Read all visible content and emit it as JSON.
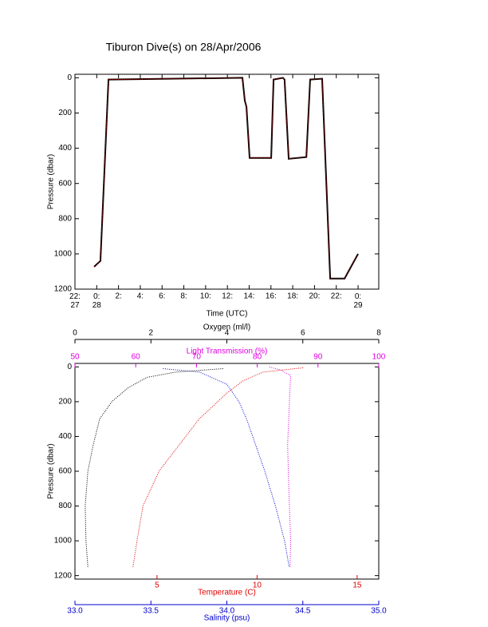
{
  "chart_data": [
    {
      "type": "line",
      "title": "Tiburon Dive(s) on 28/Apr/2006",
      "xlabel": "Time (UTC)",
      "ylabel": "Pressure (dbar)",
      "x": [
        -0.24,
        -0.02,
        0.34,
        1.08,
        13.38,
        13.6,
        13.75,
        14.04,
        16.02,
        16.24,
        17.1,
        17.25,
        17.63,
        19.25,
        19.6,
        20.7,
        21.44,
        22.76,
        24.0
      ],
      "values": [
        1073,
        1060,
        1040,
        10,
        0,
        130,
        165,
        455,
        455,
        10,
        0,
        10,
        460,
        450,
        10,
        5,
        1140,
        1140,
        1000
      ],
      "color": "#000000",
      "line_color": "#e00000",
      "xlim": [
        -2,
        25.9
      ],
      "xticks": [
        {
          "value": -2,
          "label": "22:\n27"
        },
        {
          "value": 0,
          "label": "0:\n28"
        },
        {
          "value": 2,
          "label": "2:"
        },
        {
          "value": 4,
          "label": "4:"
        },
        {
          "value": 6,
          "label": "6:"
        },
        {
          "value": 8,
          "label": "8:"
        },
        {
          "value": 10,
          "label": "10:"
        },
        {
          "value": 12,
          "label": "12:"
        },
        {
          "value": 14,
          "label": "14:"
        },
        {
          "value": 16,
          "label": "16:"
        },
        {
          "value": 18,
          "label": "18:"
        },
        {
          "value": 20,
          "label": "20:"
        },
        {
          "value": 22,
          "label": "22:"
        },
        {
          "value": 24,
          "label": "0:\n29"
        }
      ],
      "ylim": [
        1200,
        -20
      ],
      "yticks": [
        0,
        200,
        400,
        600,
        800,
        1000,
        1200
      ]
    },
    {
      "type": "profile",
      "ylabel": "Pressure (dbar)",
      "ylim": [
        1220,
        -20
      ],
      "yticks": [
        0,
        200,
        400,
        600,
        800,
        1000,
        1200
      ],
      "axes": [
        {
          "label": "Oxygen (ml/l)",
          "side": "top",
          "color": "#000000",
          "xlim": [
            0,
            8
          ],
          "xticks": [
            0,
            2,
            4,
            6,
            8
          ],
          "x": [
            3.9,
            2.65,
            1.9,
            1.4,
            0.97,
            0.65,
            0.48,
            0.34,
            0.27,
            0.29,
            0.34
          ],
          "pressure": [
            10,
            30,
            60,
            120,
            200,
            300,
            450,
            600,
            800,
            1000,
            1150
          ]
        },
        {
          "label": "Light Transmission (%)",
          "side": "top",
          "color": "#e000e0",
          "xlim": [
            50,
            100
          ],
          "xticks": [
            50,
            60,
            70,
            80,
            90,
            100
          ],
          "x": [
            82,
            84,
            85.5,
            85.3,
            85,
            85.2,
            85.5,
            85.4
          ],
          "pressure": [
            0,
            20,
            50,
            200,
            450,
            700,
            1000,
            1150
          ]
        },
        {
          "label": "Temperature (C)",
          "side": "bottom",
          "color": "#e00000",
          "xlim": [
            0.9,
            16.08
          ],
          "xticks": [
            5,
            10,
            15
          ],
          "x": [
            12.3,
            10.3,
            9.3,
            8.5,
            7.1,
            6.1,
            5.1,
            4.3,
            4.0,
            3.8
          ],
          "pressure": [
            5,
            30,
            80,
            150,
            300,
            450,
            600,
            800,
            1000,
            1150
          ]
        },
        {
          "label": "Salinity (psu)",
          "side": "bottom",
          "color": "#0000cc",
          "xlim": [
            33,
            35
          ],
          "xticks": [
            {
              "value": 33,
              "label": "33.0"
            },
            33.5,
            {
              "value": 34,
              "label": "34.0"
            },
            34.5,
            {
              "value": 35,
              "label": "35.0"
            }
          ],
          "x": [
            33.58,
            33.82,
            34.0,
            34.08,
            34.13,
            34.19,
            34.25,
            34.32,
            34.38,
            34.41
          ],
          "pressure": [
            10,
            30,
            100,
            200,
            300,
            450,
            600,
            800,
            1000,
            1150
          ]
        }
      ]
    }
  ]
}
